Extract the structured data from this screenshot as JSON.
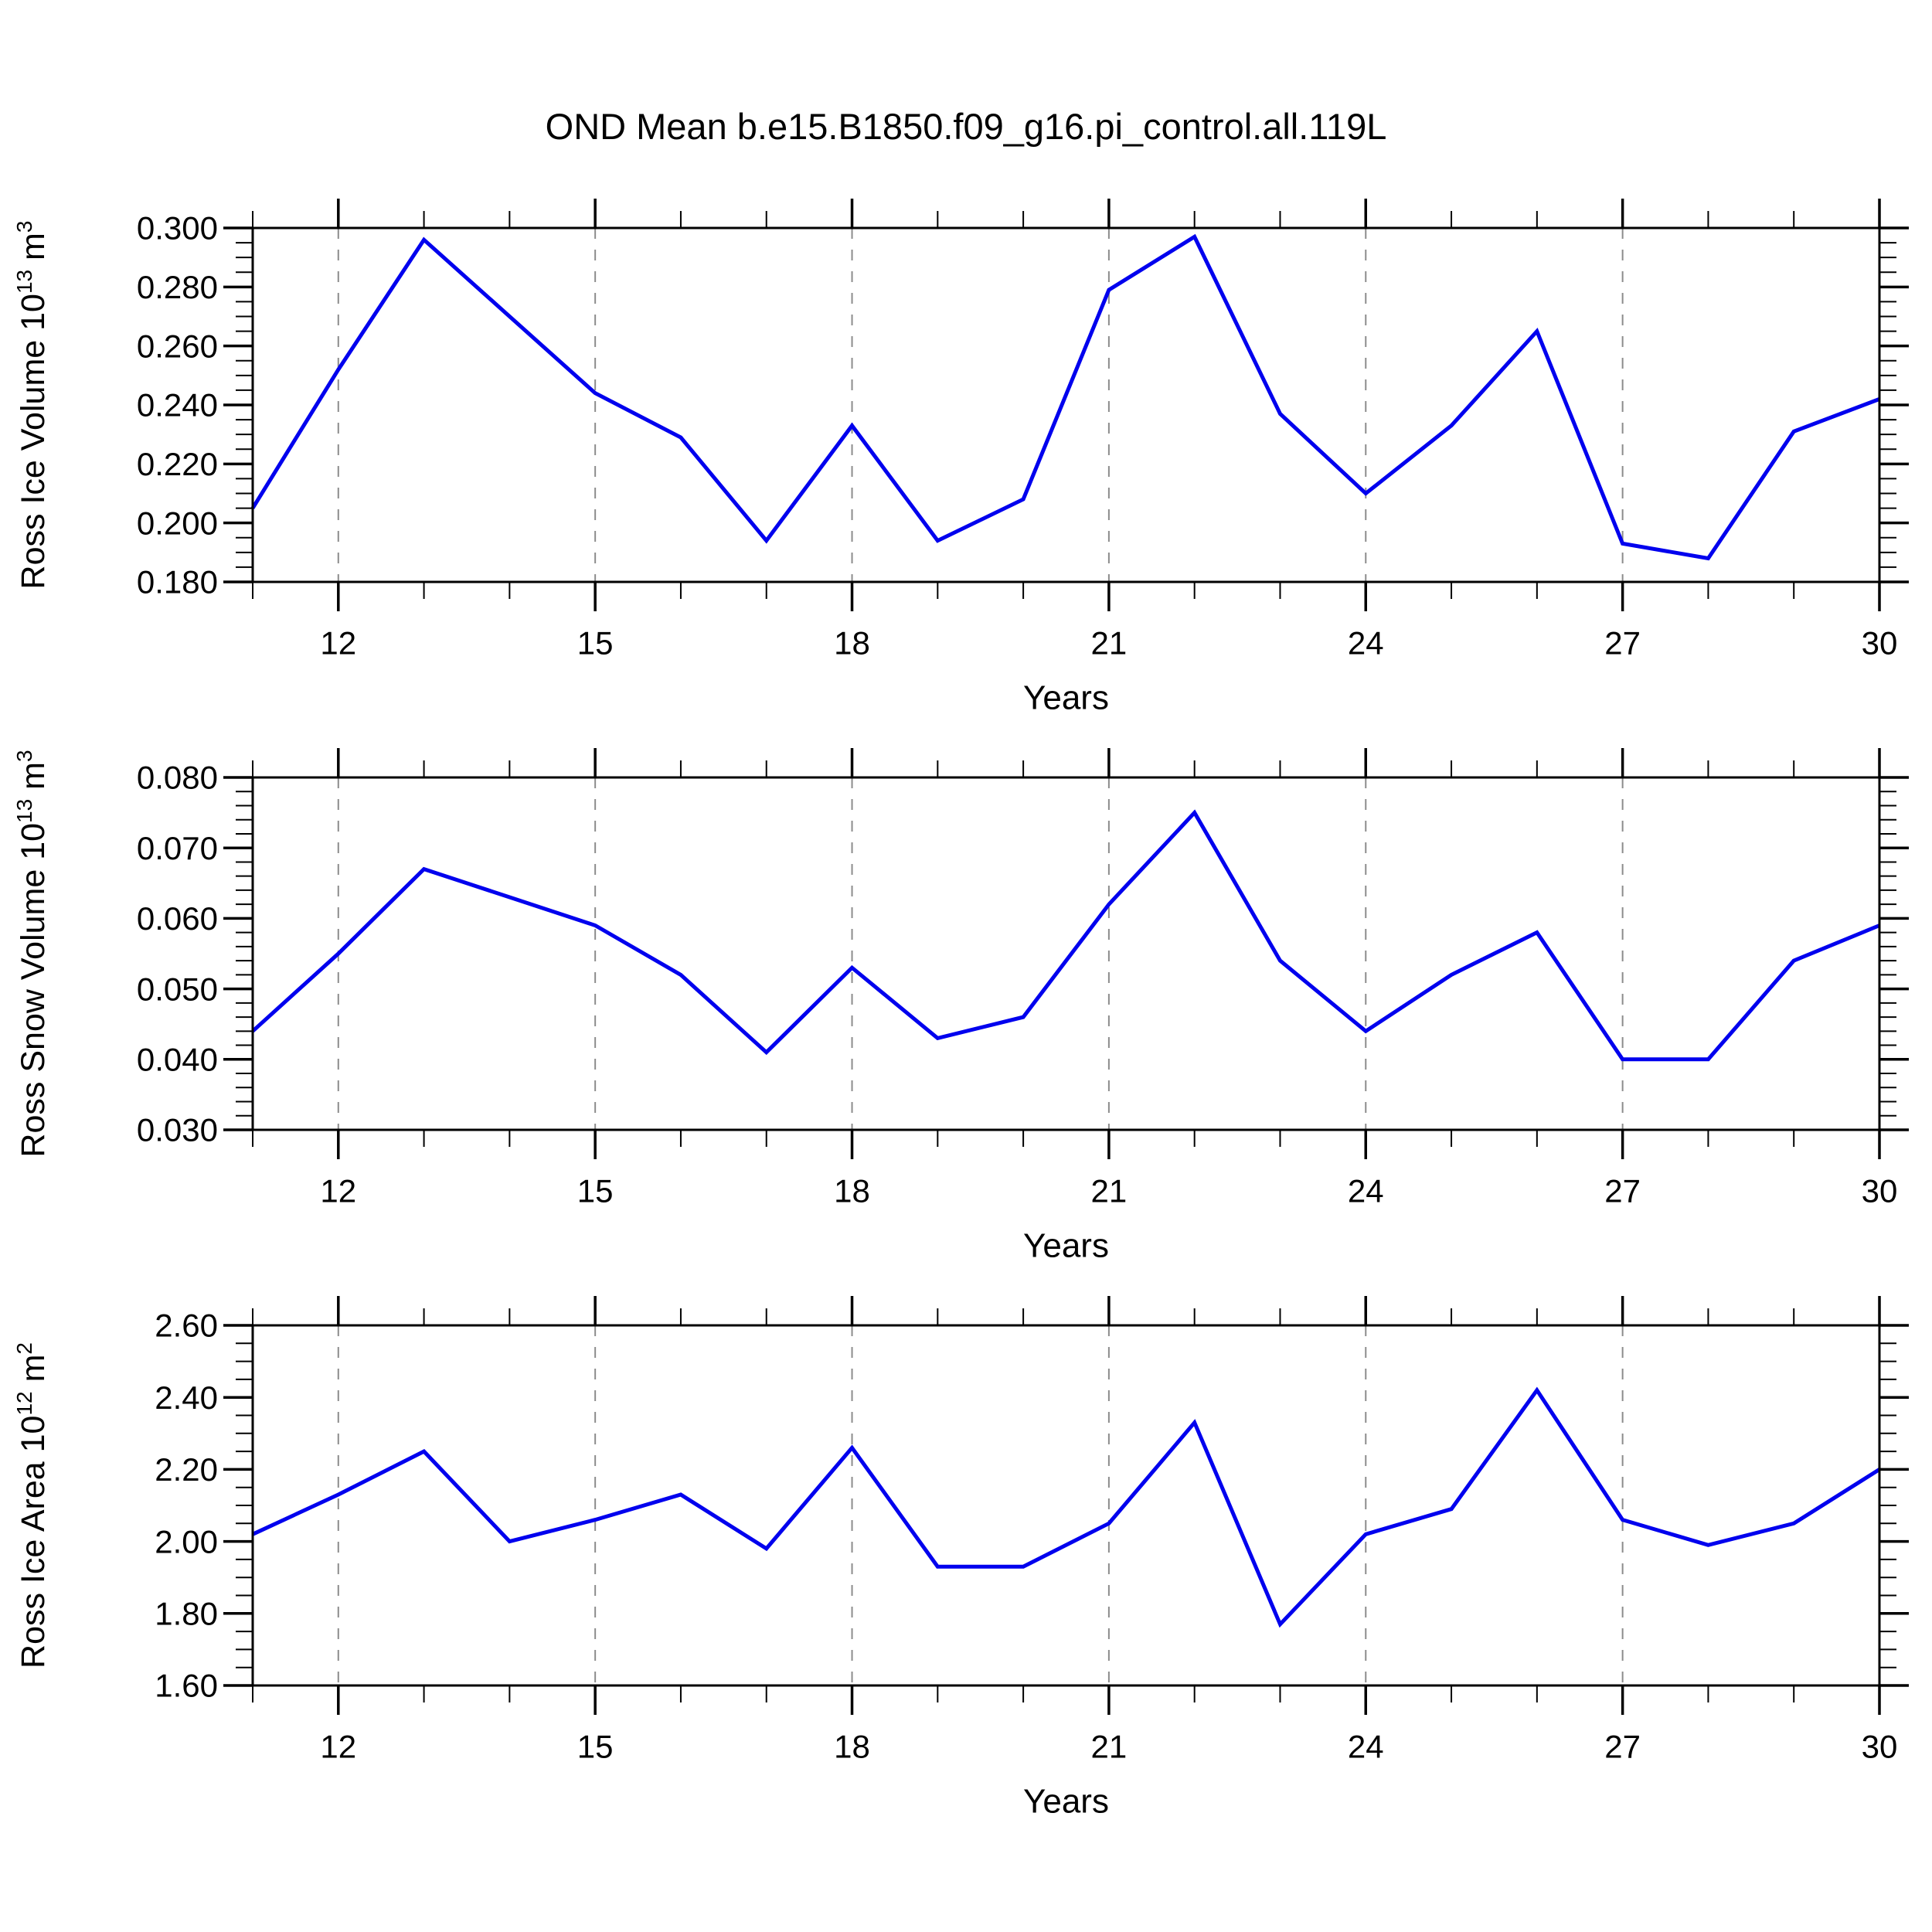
{
  "figure": {
    "title": "OND Mean b.e15.B1850.f09_g16.pi_control.all.119L"
  },
  "colors": {
    "line": "#0000ee",
    "axis": "#000000",
    "grid": "#8c8c8c",
    "background": "#ffffff"
  },
  "chart_data": [
    {
      "type": "line",
      "title": "OND Mean b.e15.B1850.f09_g16.pi_control.all.119L",
      "x": [
        11,
        12,
        13,
        14,
        15,
        16,
        17,
        18,
        19,
        20,
        21,
        22,
        23,
        24,
        25,
        26,
        27,
        28,
        29,
        30
      ],
      "values": [
        0.205,
        0.252,
        0.296,
        0.27,
        0.244,
        0.229,
        0.194,
        0.233,
        0.194,
        0.208,
        0.279,
        0.297,
        0.237,
        0.21,
        0.233,
        0.265,
        0.193,
        0.188,
        0.231,
        0.242
      ],
      "xlabel": "Years",
      "ylabel": "Ross Ice Volume 10^13 m^3",
      "ylabel_parts": {
        "name": "Ross Ice Volume",
        "base": "10",
        "exp": "13",
        "unit": "m",
        "unit_exp": "3"
      },
      "xlim": [
        11,
        30
      ],
      "ylim": [
        0.18,
        0.3
      ],
      "xticks": {
        "values": [
          12,
          15,
          18,
          21,
          24,
          27,
          30
        ],
        "labels": [
          "12",
          "15",
          "18",
          "21",
          "24",
          "27",
          "30"
        ]
      },
      "yticks": {
        "values": [
          0.18,
          0.2,
          0.22,
          0.24,
          0.26,
          0.28,
          0.3
        ],
        "labels": [
          "0.180",
          "0.200",
          "0.220",
          "0.240",
          "0.260",
          "0.280",
          "0.300"
        ]
      },
      "x_minor_step": 1,
      "y_minor_step": 0.005,
      "grid_x": [
        12,
        15,
        18,
        21,
        24,
        27
      ],
      "grid": "vertical-dashed-at-major-xticks",
      "legend": "none"
    },
    {
      "type": "line",
      "title": "",
      "x": [
        11,
        12,
        13,
        14,
        15,
        16,
        17,
        18,
        19,
        20,
        21,
        22,
        23,
        24,
        25,
        26,
        27,
        28,
        29,
        30
      ],
      "values": [
        0.044,
        0.055,
        0.067,
        0.063,
        0.059,
        0.052,
        0.041,
        0.053,
        0.043,
        0.046,
        0.062,
        0.075,
        0.054,
        0.044,
        0.052,
        0.058,
        0.04,
        0.04,
        0.054,
        0.059
      ],
      "xlabel": "Years",
      "ylabel": "Ross Snow Volume 10^13 m^3",
      "ylabel_parts": {
        "name": "Ross Snow Volume",
        "base": "10",
        "exp": "13",
        "unit": "m",
        "unit_exp": "3"
      },
      "xlim": [
        11,
        30
      ],
      "ylim": [
        0.03,
        0.08
      ],
      "xticks": {
        "values": [
          12,
          15,
          18,
          21,
          24,
          27,
          30
        ],
        "labels": [
          "12",
          "15",
          "18",
          "21",
          "24",
          "27",
          "30"
        ]
      },
      "yticks": {
        "values": [
          0.03,
          0.04,
          0.05,
          0.06,
          0.07,
          0.08
        ],
        "labels": [
          "0.030",
          "0.040",
          "0.050",
          "0.060",
          "0.070",
          "0.080"
        ]
      },
      "x_minor_step": 1,
      "y_minor_step": 0.002,
      "grid_x": [
        12,
        15,
        18,
        21,
        24,
        27
      ],
      "grid": "vertical-dashed-at-major-xticks",
      "legend": "none"
    },
    {
      "type": "line",
      "title": "",
      "x": [
        11,
        12,
        13,
        14,
        15,
        16,
        17,
        18,
        19,
        20,
        21,
        22,
        23,
        24,
        25,
        26,
        27,
        28,
        29,
        30
      ],
      "values": [
        2.02,
        2.13,
        2.25,
        2.0,
        2.06,
        2.13,
        1.98,
        2.26,
        1.93,
        1.93,
        2.05,
        2.33,
        1.77,
        2.02,
        2.09,
        2.42,
        2.06,
        1.99,
        2.05,
        2.2
      ],
      "xlabel": "Years",
      "ylabel": "Ross Ice Area 10^12 m^2",
      "ylabel_parts": {
        "name": "Ross Ice Area",
        "base": "10",
        "exp": "12",
        "unit": "m",
        "unit_exp": "2"
      },
      "xlim": [
        11,
        30
      ],
      "ylim": [
        1.6,
        2.6
      ],
      "xticks": {
        "values": [
          12,
          15,
          18,
          21,
          24,
          27,
          30
        ],
        "labels": [
          "12",
          "15",
          "18",
          "21",
          "24",
          "27",
          "30"
        ]
      },
      "yticks": {
        "values": [
          1.6,
          1.8,
          2.0,
          2.2,
          2.4,
          2.6
        ],
        "labels": [
          "1.60",
          "1.80",
          "2.00",
          "2.20",
          "2.40",
          "2.60"
        ]
      },
      "x_minor_step": 1,
      "y_minor_step": 0.05,
      "grid_x": [
        12,
        15,
        18,
        21,
        24,
        27
      ],
      "grid": "vertical-dashed-at-major-xticks",
      "legend": "none"
    }
  ]
}
